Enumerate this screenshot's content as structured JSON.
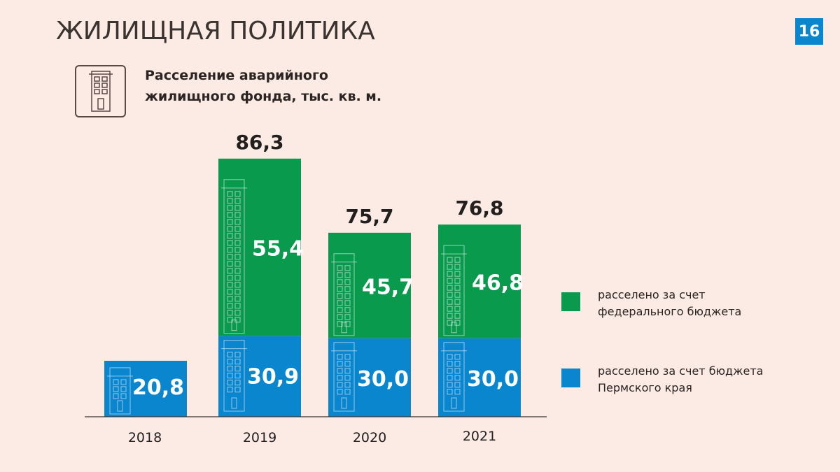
{
  "header": {
    "title": "ЖИЛИЩНАЯ ПОЛИТИКА",
    "page_number": "16",
    "page_number_bg": "#0a86cf"
  },
  "section": {
    "icon": "building-icon",
    "subtitle_line1": "Расселение аварийного",
    "subtitle_line2": "жилищного фонда, тыс. кв. м."
  },
  "colors": {
    "federal": "#0a9a4e",
    "regional": "#0a86cf",
    "background": "#fcebe4"
  },
  "chart_data": {
    "type": "bar",
    "stacked": true,
    "title": "Расселение аварийного жилищного фонда, тыс. кв. м.",
    "xlabel": "",
    "ylabel": "",
    "categories": [
      "2018",
      "2019",
      "2020",
      "2021"
    ],
    "series": [
      {
        "name": "расселено за счет бюджета Пермского края",
        "color": "#0a86cf",
        "values": [
          20.8,
          30.9,
          30.0,
          30.0
        ],
        "labels": [
          "20,8",
          "30,9",
          "30,0",
          "30,0"
        ]
      },
      {
        "name": "расселено за счет федерального бюджета",
        "color": "#0a9a4e",
        "values": [
          0,
          55.4,
          45.7,
          46.8
        ],
        "labels": [
          "",
          "55,4",
          "45,7",
          "46,8"
        ]
      }
    ],
    "totals": [
      20.8,
      86.3,
      75.7,
      76.8
    ],
    "total_labels": [
      "",
      "86,3",
      "75,7",
      "76,8"
    ],
    "grid": false,
    "legend": {
      "position": "right",
      "entries": [
        {
          "line1": "расселено за счет",
          "line2": "федерального бюджета",
          "color": "#0a9a4e"
        },
        {
          "line1": "расселено за счет бюджета",
          "line2": "Пермского края",
          "color": "#0a86cf"
        }
      ]
    }
  }
}
